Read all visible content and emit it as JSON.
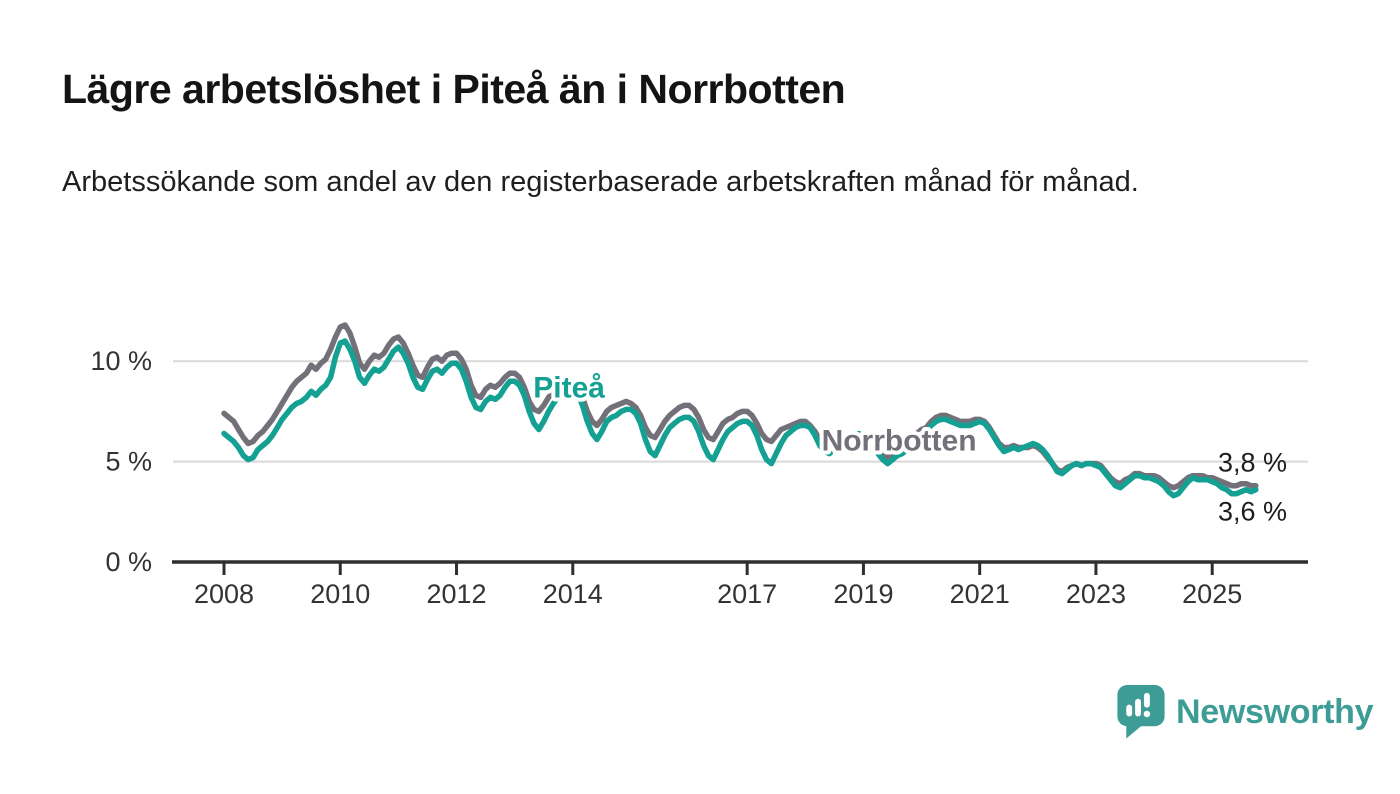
{
  "header": {
    "title": "Lägre arbetslöshet i Piteå än i Norrbotten",
    "subtitle": "Arbetssökande som andel av den registerbaserade arbetskraften månad för månad."
  },
  "branding": {
    "name": "Newsworthy",
    "logo_icon": "newsworthy-speech-bubble-chart-icon",
    "color": "#3e9c96"
  },
  "chart_data": {
    "type": "line",
    "title": "Lägre arbetslöshet i Piteå än i Norrbotten",
    "subtitle": "Arbetssökande som andel av den registerbaserade arbetskraften månad för månad.",
    "x_unit": "monthly",
    "x_start": 2008.0,
    "x_end_month": "2025-10",
    "ylim": [
      0,
      12
    ],
    "grid": "horizontal",
    "legend_position": "inline-labels",
    "axis_color": "#2f2f2f",
    "grid_color": "#d9d9d9",
    "text_color": "#333333",
    "value_label_color": "#1d1d1d",
    "yticks": [
      {
        "value": 0,
        "label": "0 %"
      },
      {
        "value": 5,
        "label": "5 %"
      },
      {
        "value": 10,
        "label": "10 %"
      }
    ],
    "xticks": [
      {
        "value": 2008,
        "label": "2008"
      },
      {
        "value": 2010,
        "label": "2010"
      },
      {
        "value": 2012,
        "label": "2012"
      },
      {
        "value": 2014,
        "label": "2014"
      },
      {
        "value": 2017,
        "label": "2017"
      },
      {
        "value": 2019,
        "label": "2019"
      },
      {
        "value": 2021,
        "label": "2021"
      },
      {
        "value": 2023,
        "label": "2023"
      },
      {
        "value": 2025,
        "label": "2025"
      }
    ],
    "series": [
      {
        "name": "Piteå",
        "color": "#14a093",
        "label_x": 2013.32,
        "label_y": 8.2,
        "end_label": "3,6 %",
        "end_label_side": "below",
        "values": [
          6.4,
          6.2,
          6.0,
          5.7,
          5.3,
          5.1,
          5.2,
          5.6,
          5.8,
          6.0,
          6.3,
          6.7,
          7.1,
          7.4,
          7.7,
          7.9,
          8.0,
          8.2,
          8.5,
          8.3,
          8.6,
          8.8,
          9.2,
          10.2,
          10.9,
          11.0,
          10.6,
          10.0,
          9.2,
          8.9,
          9.3,
          9.6,
          9.5,
          9.7,
          10.1,
          10.5,
          10.7,
          10.4,
          9.9,
          9.2,
          8.7,
          8.6,
          9.1,
          9.5,
          9.6,
          9.4,
          9.7,
          9.9,
          9.9,
          9.6,
          9.0,
          8.2,
          7.7,
          7.6,
          8.0,
          8.2,
          8.1,
          8.3,
          8.7,
          9.0,
          9.0,
          8.8,
          8.3,
          7.5,
          6.9,
          6.6,
          7.0,
          7.5,
          7.9,
          8.2,
          8.5,
          8.7,
          8.7,
          8.4,
          7.8,
          7.0,
          6.4,
          6.1,
          6.5,
          7.0,
          7.2,
          7.3,
          7.5,
          7.6,
          7.6,
          7.4,
          6.9,
          6.1,
          5.5,
          5.3,
          5.8,
          6.3,
          6.7,
          6.9,
          7.1,
          7.2,
          7.2,
          7.0,
          6.5,
          5.8,
          5.3,
          5.1,
          5.6,
          6.1,
          6.5,
          6.7,
          6.9,
          7.0,
          7.0,
          6.8,
          6.3,
          5.6,
          5.1,
          4.9,
          5.4,
          5.9,
          6.3,
          6.5,
          6.7,
          6.8,
          6.8,
          6.7,
          6.3,
          5.8,
          5.5,
          5.4,
          5.7,
          6.0,
          6.1,
          6.2,
          6.3,
          6.4,
          6.3,
          6.1,
          5.8,
          5.4,
          5.1,
          4.9,
          5.1,
          5.3,
          5.4,
          5.6,
          5.9,
          6.2,
          6.4,
          6.5,
          6.8,
          7.0,
          7.1,
          7.1,
          7.0,
          6.9,
          6.8,
          6.8,
          6.8,
          6.9,
          7.0,
          6.9,
          6.6,
          6.2,
          5.8,
          5.5,
          5.6,
          5.7,
          5.6,
          5.7,
          5.8,
          5.9,
          5.8,
          5.6,
          5.3,
          4.9,
          4.5,
          4.4,
          4.6,
          4.8,
          4.9,
          4.8,
          4.9,
          4.9,
          4.8,
          4.7,
          4.4,
          4.1,
          3.8,
          3.7,
          3.9,
          4.1,
          4.3,
          4.3,
          4.2,
          4.2,
          4.1,
          4.0,
          3.8,
          3.5,
          3.3,
          3.4,
          3.7,
          4.0,
          4.2,
          4.1,
          4.1,
          4.1,
          4.0,
          3.9,
          3.7,
          3.6,
          3.4,
          3.4,
          3.5,
          3.6,
          3.5,
          3.6
        ]
      },
      {
        "name": "Norrbotten",
        "color": "#74707a",
        "label_x": 2018.28,
        "label_y": 5.55,
        "end_label": "3,8 %",
        "end_label_side": "above",
        "values": [
          7.4,
          7.2,
          7.0,
          6.6,
          6.2,
          5.9,
          6.0,
          6.3,
          6.5,
          6.8,
          7.1,
          7.5,
          7.9,
          8.3,
          8.7,
          9.0,
          9.2,
          9.4,
          9.8,
          9.6,
          9.9,
          10.1,
          10.6,
          11.2,
          11.7,
          11.8,
          11.4,
          10.7,
          9.9,
          9.6,
          10.0,
          10.3,
          10.2,
          10.4,
          10.8,
          11.1,
          11.2,
          10.9,
          10.4,
          9.8,
          9.3,
          9.2,
          9.7,
          10.1,
          10.2,
          10.0,
          10.3,
          10.4,
          10.4,
          10.1,
          9.6,
          8.8,
          8.3,
          8.2,
          8.6,
          8.8,
          8.7,
          8.9,
          9.2,
          9.4,
          9.4,
          9.2,
          8.7,
          8.0,
          7.6,
          7.5,
          7.8,
          8.2,
          8.5,
          8.7,
          8.9,
          9.0,
          8.9,
          8.7,
          8.2,
          7.5,
          7.0,
          6.8,
          7.1,
          7.5,
          7.7,
          7.8,
          7.9,
          8.0,
          7.9,
          7.7,
          7.3,
          6.7,
          6.3,
          6.2,
          6.6,
          7.0,
          7.3,
          7.5,
          7.7,
          7.8,
          7.8,
          7.6,
          7.2,
          6.6,
          6.2,
          6.1,
          6.5,
          6.9,
          7.1,
          7.2,
          7.4,
          7.5,
          7.5,
          7.3,
          6.9,
          6.4,
          6.1,
          6.0,
          6.3,
          6.6,
          6.7,
          6.8,
          6.9,
          7.0,
          7.0,
          6.8,
          6.5,
          6.1,
          5.8,
          5.7,
          5.9,
          6.1,
          6.1,
          6.1,
          6.2,
          6.2,
          6.2,
          6.0,
          5.8,
          5.5,
          5.3,
          5.2,
          5.4,
          5.6,
          5.7,
          5.8,
          6.1,
          6.4,
          6.6,
          6.7,
          7.0,
          7.2,
          7.3,
          7.3,
          7.2,
          7.1,
          7.0,
          7.0,
          7.0,
          7.1,
          7.1,
          7.0,
          6.7,
          6.3,
          5.9,
          5.7,
          5.7,
          5.8,
          5.7,
          5.7,
          5.7,
          5.8,
          5.7,
          5.5,
          5.2,
          4.9,
          4.6,
          4.5,
          4.7,
          4.8,
          4.9,
          4.8,
          4.9,
          4.9,
          4.9,
          4.8,
          4.5,
          4.2,
          4.0,
          3.9,
          4.1,
          4.2,
          4.4,
          4.4,
          4.3,
          4.3,
          4.3,
          4.2,
          4.0,
          3.8,
          3.7,
          3.8,
          4.0,
          4.2,
          4.3,
          4.3,
          4.3,
          4.2,
          4.2,
          4.1,
          4.0,
          3.9,
          3.8,
          3.8,
          3.9,
          3.9,
          3.8,
          3.8
        ]
      }
    ]
  }
}
